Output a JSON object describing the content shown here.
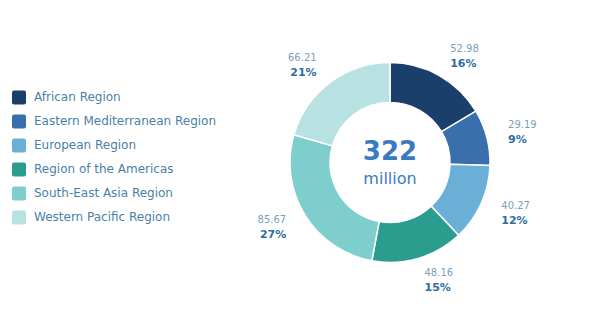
{
  "chart_data": {
    "type": "pie",
    "categories": [
      "African Region",
      "Eastern Mediterranean Region",
      "European Region",
      "Region of the Americas",
      "South-East Asia Region",
      "Western Pacific Region"
    ],
    "values": [
      52.98,
      29.19,
      40.27,
      48.16,
      85.67,
      66.21
    ],
    "shares": [
      16,
      9,
      12,
      15,
      27,
      21
    ],
    "share_labels": [
      "16%",
      "9%",
      "12%",
      "15%",
      "27%",
      "21%"
    ],
    "colors": [
      "#1b3f6b",
      "#3a6fad",
      "#6aafd6",
      "#2a9d8e",
      "#7ecece",
      "#b8e2e2"
    ],
    "annotations": [
      "322",
      "million"
    ],
    "data_labels": true,
    "legend": "left"
  }
}
